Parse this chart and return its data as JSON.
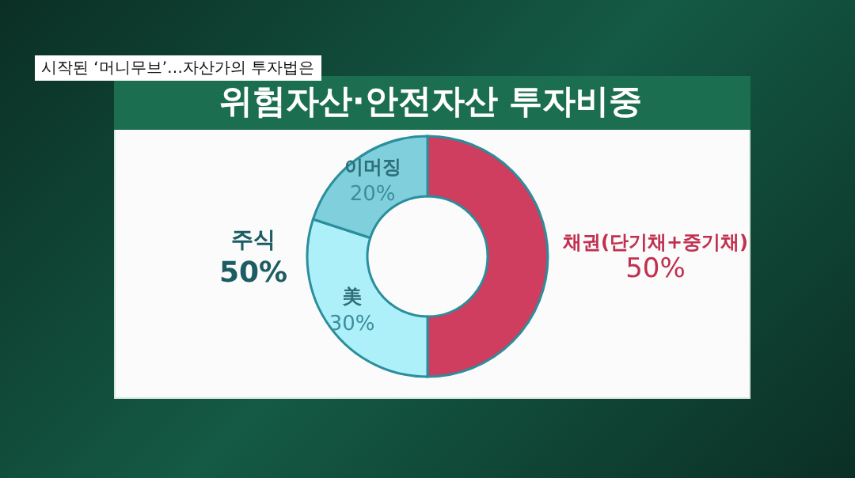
{
  "chart_data": {
    "type": "donut",
    "title": "위험자산·안전자산 투자비중",
    "categories": [
      "채권(단기채+중기채)",
      "美",
      "이머징"
    ],
    "values": [
      50,
      30,
      20
    ],
    "colors": [
      "#cf3d5f",
      "#aef0fa",
      "#7fd0dc"
    ],
    "value_labels": [
      "50%",
      "30%",
      "20%"
    ],
    "annotations": [
      "시작된 ‘머니무브’…자산가의 투자법은",
      "주식",
      "50%"
    ],
    "legend": false
  }
}
